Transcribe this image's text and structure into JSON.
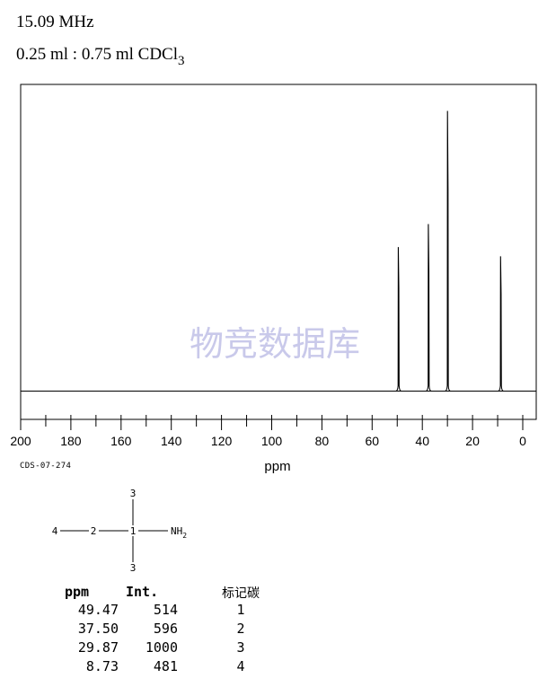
{
  "header": {
    "frequency": "15.09 MHz",
    "solvent_prefix": "0.25 ml : 0.75 ml CDCl",
    "solvent_subscript": "3"
  },
  "chart_data": {
    "type": "line",
    "xlabel": "ppm",
    "xlim": [
      200,
      -5
    ],
    "x_ticks": [
      "200",
      "180",
      "160",
      "140",
      "120",
      "100",
      "80",
      "60",
      "40",
      "20",
      "0"
    ],
    "peaks": [
      {
        "ppm": 49.47,
        "intensity": 514
      },
      {
        "ppm": 37.5,
        "intensity": 596
      },
      {
        "ppm": 29.87,
        "intensity": 1000
      },
      {
        "ppm": 8.73,
        "intensity": 481
      }
    ],
    "watermark": "物竞数据库",
    "grid": false
  },
  "spectrum_code": "CDS-07-274",
  "structure": {
    "atom_4": "4",
    "atom_2": "2",
    "atom_1": "1",
    "atom_3_top": "3",
    "atom_3_bottom": "3",
    "group": "NH",
    "group_subscript": "2"
  },
  "table": {
    "headers": [
      "ppm",
      "Int.",
      "标记碳"
    ],
    "rows": [
      [
        "49.47",
        "514",
        "1"
      ],
      [
        "37.50",
        "596",
        "2"
      ],
      [
        "29.87",
        "1000",
        "3"
      ],
      [
        "8.73",
        "481",
        "4"
      ]
    ]
  }
}
